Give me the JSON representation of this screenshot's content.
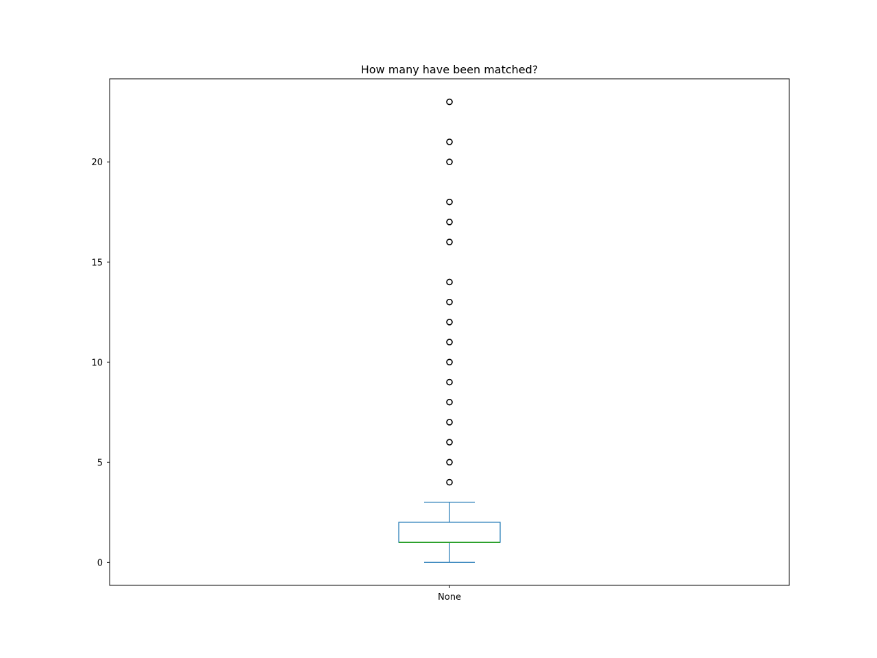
{
  "chart_data": {
    "type": "box",
    "title": "How many have been matched?",
    "xlabel": "",
    "ylabel": "",
    "categories": [
      "None"
    ],
    "ylim": [
      -1.15,
      24.15
    ],
    "yticks": [
      0,
      5,
      10,
      15,
      20
    ],
    "grid": false,
    "box": {
      "whislo": 0,
      "q1": 1,
      "median": 1,
      "q3": 2,
      "whishi": 3,
      "fliers": [
        4,
        5,
        6,
        7,
        8,
        9,
        10,
        11,
        12,
        13,
        14,
        16,
        17,
        18,
        20,
        21,
        23
      ]
    },
    "colors": {
      "box": "#1f77b4",
      "median": "#2ca02c",
      "flier": "#000000",
      "axes": "#000000"
    }
  }
}
